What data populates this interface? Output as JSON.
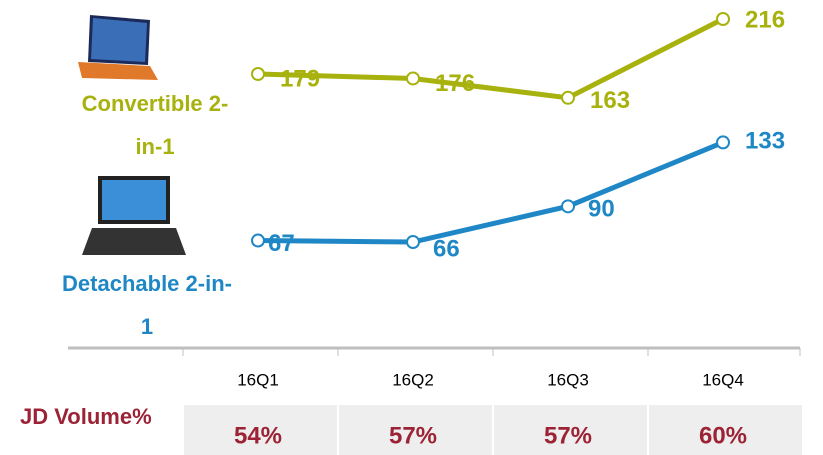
{
  "chart_data": {
    "type": "line",
    "categories": [
      "16Q1",
      "16Q2",
      "16Q3",
      "16Q4"
    ],
    "series": [
      {
        "name": "Convertible 2-in-1",
        "color": "#a8b20f",
        "values": [
          179,
          176,
          163,
          216
        ]
      },
      {
        "name": "Detachable 2-in-1",
        "color": "#1f87c6",
        "values": [
          67,
          66,
          90,
          133
        ]
      }
    ],
    "table_row": {
      "label": "JD Volume%",
      "color": "#9b2335",
      "values": [
        54,
        57,
        57,
        60
      ],
      "value_labels": [
        "54%",
        "57%",
        "57%",
        "60%"
      ]
    }
  }
}
